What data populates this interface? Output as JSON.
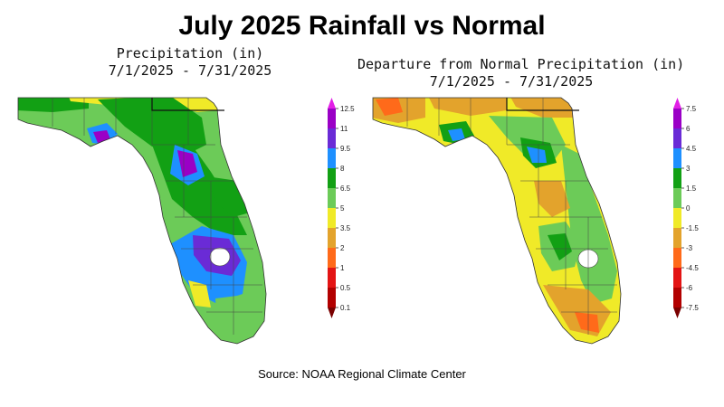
{
  "title": "July 2025 Rainfall vs Normal",
  "left_map": {
    "title_line1": "Precipitation (in)",
    "title_line2": "7/1/2025 - 7/31/2025",
    "legend_ticks": [
      "12.5",
      "11",
      "9.5",
      "8",
      "6.5",
      "5",
      "3.5",
      "2",
      "1",
      "0.5",
      "0.1"
    ],
    "legend_colors": [
      "#e21fe6",
      "#9a00c6",
      "#6a2bd6",
      "#1e90ff",
      "#12a014",
      "#6ccb58",
      "#f0ea28",
      "#e3a32c",
      "#ff6a1a",
      "#e31414",
      "#b20000",
      "#7a0000"
    ]
  },
  "right_map": {
    "title_line1": "Departure from Normal Precipitation (in)",
    "title_line2": "7/1/2025 - 7/31/2025",
    "legend_ticks": [
      "7.5",
      "6",
      "4.5",
      "3",
      "1.5",
      "0",
      "-1.5",
      "-3",
      "-4.5",
      "-6",
      "-7.5"
    ],
    "legend_colors": [
      "#e21fe6",
      "#9a00c6",
      "#6a2bd6",
      "#1e90ff",
      "#12a014",
      "#6ccb58",
      "#f0ea28",
      "#e3a32c",
      "#ff6a1a",
      "#e31414",
      "#b20000",
      "#7a0000"
    ]
  },
  "source": "Source:  NOAA Regional Climate Center"
}
